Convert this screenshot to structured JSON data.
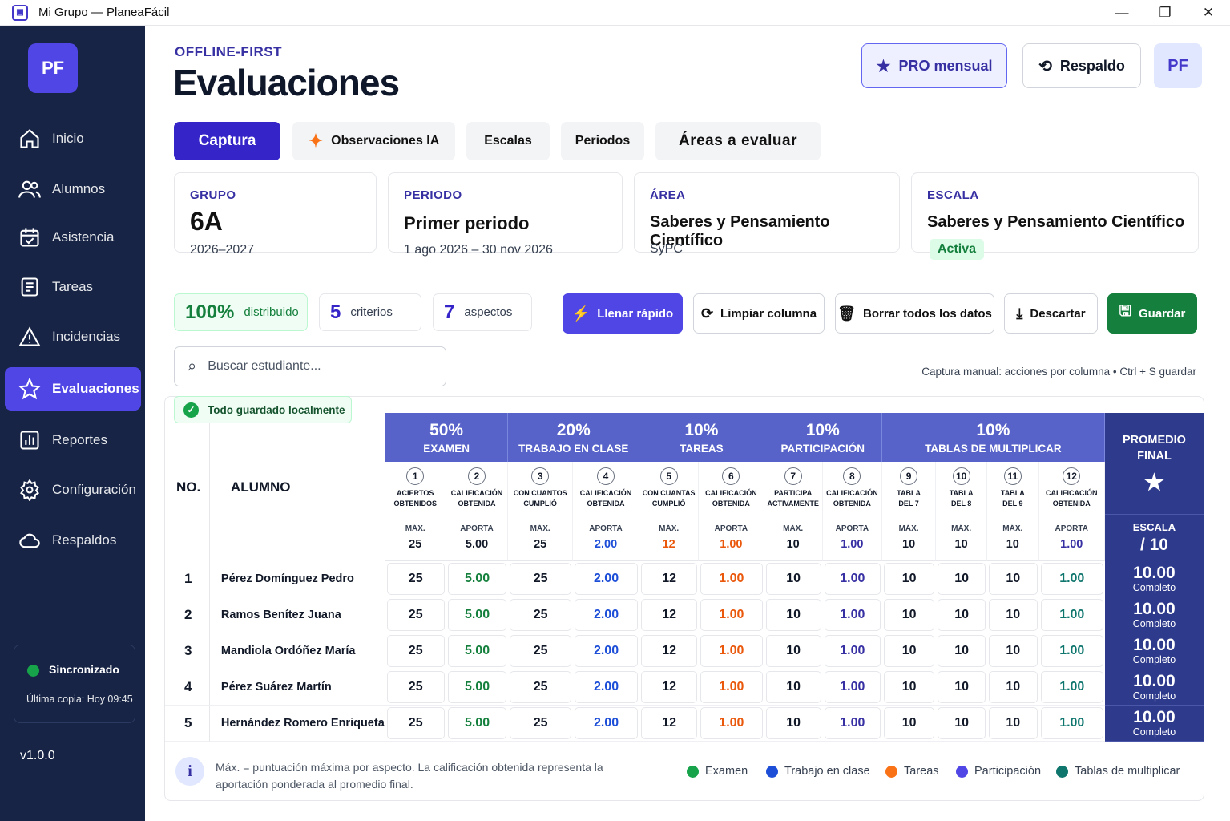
{
  "window": {
    "title": "Mi Grupo — PlaneaFácil",
    "app_icon": "app-logo-icon",
    "controls": [
      "—",
      "❐",
      "✕"
    ]
  },
  "sidebar": {
    "logo": "PF",
    "items": [
      {
        "label": "Inicio",
        "icon": "home-icon"
      },
      {
        "label": "Alumnos",
        "icon": "users-icon"
      },
      {
        "label": "Asistencia",
        "icon": "calendar-check-icon"
      },
      {
        "label": "Tareas",
        "icon": "clipboard-icon"
      },
      {
        "label": "Incidencias",
        "icon": "warning-icon"
      },
      {
        "label": "Evaluaciones",
        "icon": "star-icon",
        "active": true
      },
      {
        "label": "Reportes",
        "icon": "bar-chart-icon"
      },
      {
        "label": "Configuración",
        "icon": "gear-icon"
      },
      {
        "label": "Respaldos",
        "icon": "cloud-icon"
      }
    ],
    "sync": {
      "status": "Sincronizado",
      "last_copy": "Última copia: Hoy 09:45"
    },
    "version": "v1.0.0"
  },
  "header": {
    "kicker": "OFFLINE-FIRST",
    "title": "Evaluaciones",
    "pro_button": "PRO mensual",
    "backup_button": "Respaldo",
    "avatar": "PF"
  },
  "tabs": [
    "Captura",
    "Observaciones IA",
    "Escalas",
    "Periodos",
    "Áreas a evaluar"
  ],
  "cards": {
    "grupo": {
      "label": "GRUPO",
      "value": "6A",
      "sub": "2026–2027"
    },
    "periodo": {
      "label": "PERIODO",
      "value": "Primer periodo",
      "sub": "1 ago 2026 – 30 nov 2026"
    },
    "area": {
      "label": "ÁREA",
      "value": "Saberes y Pensamiento Científico",
      "sub": "SyPC"
    },
    "escala": {
      "label": "ESCALA",
      "value": "Saberes y Pensamiento Científico",
      "badge": "Activa"
    }
  },
  "stats": {
    "distributed": {
      "value": "100%",
      "label": "distribuido"
    },
    "criteria": {
      "value": "5",
      "label": "criterios"
    },
    "aspects": {
      "value": "7",
      "label": "aspectos"
    }
  },
  "actions": {
    "fill": "Llenar rápido",
    "clear": "Limpiar columna",
    "delete_all": "Borrar todos los datos",
    "discard": "Descartar",
    "save": "Guardar"
  },
  "search": {
    "placeholder": "Buscar estudiante..."
  },
  "hint": "Captura manual: acciones por columna • Ctrl + S guardar",
  "saved_status": "Todo guardado localmente",
  "table": {
    "no_header": "NO.",
    "student_header": "ALUMNO",
    "groups": [
      {
        "pct": "50%",
        "name": "EXAMEN",
        "span": 2
      },
      {
        "pct": "20%",
        "name": "TRABAJO EN CLASE",
        "span": 2
      },
      {
        "pct": "10%",
        "name": "TAREAS",
        "span": 2
      },
      {
        "pct": "10%",
        "name": "PARTICIPACIÓN",
        "span": 2
      },
      {
        "pct": "10%",
        "name": "TABLAS DE MULTIPLICAR",
        "span": 4
      }
    ],
    "aspects": [
      {
        "n": "1",
        "l1": "ACIERTOS",
        "l2": "OBTENIDOS",
        "t": "MÁX.",
        "v": "25",
        "c": ""
      },
      {
        "n": "2",
        "l1": "CALIFICACIÓN",
        "l2": "OBTENIDA",
        "t": "APORTA",
        "v": "5.00",
        "c": ""
      },
      {
        "n": "3",
        "l1": "CON CUANTOS",
        "l2": "CUMPLIÓ",
        "t": "MÁX.",
        "v": "25",
        "c": ""
      },
      {
        "n": "4",
        "l1": "CALIFICACIÓN",
        "l2": "OBTENIDA",
        "t": "APORTA",
        "v": "2.00",
        "c": "c-blue"
      },
      {
        "n": "5",
        "l1": "CON CUANTAS",
        "l2": "CUMPLIÓ",
        "t": "MÁX.",
        "v": "12",
        "c": "c-orange"
      },
      {
        "n": "6",
        "l1": "CALIFICACIÓN",
        "l2": "OBTENIDA",
        "t": "APORTA",
        "v": "1.00",
        "c": "c-orange"
      },
      {
        "n": "7",
        "l1": "PARTICIPA",
        "l2": "ACTIVAMENTE",
        "t": "MÁX.",
        "v": "10",
        "c": ""
      },
      {
        "n": "8",
        "l1": "CALIFICACIÓN",
        "l2": "OBTENIDA",
        "t": "APORTA",
        "v": "1.00",
        "c": "c-indigo"
      },
      {
        "n": "9",
        "l1": "TABLA",
        "l2": "DEL 7",
        "t": "MÁX.",
        "v": "10",
        "c": ""
      },
      {
        "n": "10",
        "l1": "TABLA",
        "l2": "DEL 8",
        "t": "MÁX.",
        "v": "10",
        "c": ""
      },
      {
        "n": "11",
        "l1": "TABLA",
        "l2": "DEL 9",
        "t": "MÁX.",
        "v": "10",
        "c": ""
      },
      {
        "n": "12",
        "l1": "CALIFICACIÓN",
        "l2": "OBTENIDA",
        "t": "APORTA",
        "v": "1.00",
        "c": "c-indigo"
      }
    ],
    "final_header": "PROMEDIO FINAL",
    "final_scale_label": "ESCALA",
    "final_scale_value": "/ 10",
    "value_colors": [
      "",
      "c-green",
      "",
      "c-blue",
      "",
      "c-orange",
      "",
      "c-indigo",
      "",
      "",
      "",
      "c-teal"
    ],
    "rows": [
      {
        "no": "1",
        "name": "Pérez Domínguez Pedro",
        "values": [
          "25",
          "5.00",
          "25",
          "2.00",
          "12",
          "1.00",
          "10",
          "1.00",
          "10",
          "10",
          "10",
          "1.00"
        ],
        "final": "10.00",
        "status": "Completo"
      },
      {
        "no": "2",
        "name": "Ramos Benítez Juana",
        "values": [
          "25",
          "5.00",
          "25",
          "2.00",
          "12",
          "1.00",
          "10",
          "1.00",
          "10",
          "10",
          "10",
          "1.00"
        ],
        "final": "10.00",
        "status": "Completo"
      },
      {
        "no": "3",
        "name": "Mandiola Ordóñez María",
        "values": [
          "25",
          "5.00",
          "25",
          "2.00",
          "12",
          "1.00",
          "10",
          "1.00",
          "10",
          "10",
          "10",
          "1.00"
        ],
        "final": "10.00",
        "status": "Completo"
      },
      {
        "no": "4",
        "name": "Pérez Suárez Martín",
        "values": [
          "25",
          "5.00",
          "25",
          "2.00",
          "12",
          "1.00",
          "10",
          "1.00",
          "10",
          "10",
          "10",
          "1.00"
        ],
        "final": "10.00",
        "status": "Completo"
      },
      {
        "no": "5",
        "name": "Hernández Romero Enriqueta",
        "values": [
          "25",
          "5.00",
          "25",
          "2.00",
          "12",
          "1.00",
          "10",
          "1.00",
          "10",
          "10",
          "10",
          "1.00"
        ],
        "final": "10.00",
        "status": "Completo"
      }
    ]
  },
  "footer": {
    "note": "Máx. = puntuación máxima por aspecto. La calificación obtenida representa la aportación ponderada al promedio final.",
    "legend": [
      {
        "label": "Examen",
        "color": "#16a34a"
      },
      {
        "label": "Trabajo en clase",
        "color": "#1d4ed8"
      },
      {
        "label": "Tareas",
        "color": "#f97316"
      },
      {
        "label": "Participación",
        "color": "#4f46e5"
      },
      {
        "label": "Tablas de multiplicar",
        "color": "#0f766e"
      }
    ]
  }
}
